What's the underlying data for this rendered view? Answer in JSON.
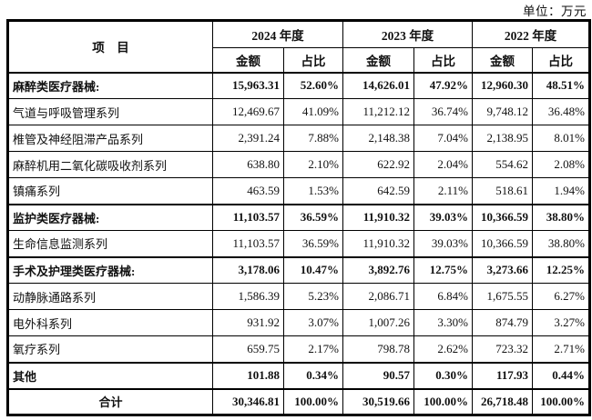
{
  "page": {
    "unit_label": "单位：万元"
  },
  "table": {
    "item_header": "项　目",
    "year_groups": [
      {
        "label": "2024 年度"
      },
      {
        "label": "2023 年度"
      },
      {
        "label": "2022 年度"
      }
    ],
    "sub_headers": [
      "金额",
      "占比",
      "金额",
      "占比",
      "金额",
      "占比"
    ],
    "rows": [
      {
        "label": "麻醉类医疗器械:",
        "bold": true,
        "total": false,
        "values": [
          "15,963.31",
          "52.60%",
          "14,626.01",
          "47.92%",
          "12,960.30",
          "48.51%"
        ]
      },
      {
        "label": "气道与呼吸管理系列",
        "bold": false,
        "total": false,
        "values": [
          "12,469.67",
          "41.09%",
          "11,212.12",
          "36.74%",
          "9,748.12",
          "36.48%"
        ]
      },
      {
        "label": "椎管及神经阻滞产品系列",
        "bold": false,
        "total": false,
        "values": [
          "2,391.24",
          "7.88%",
          "2,148.38",
          "7.04%",
          "2,138.95",
          "8.01%"
        ]
      },
      {
        "label": "麻醉机用二氧化碳吸收剂系列",
        "bold": false,
        "total": false,
        "values": [
          "638.80",
          "2.10%",
          "622.92",
          "2.04%",
          "554.62",
          "2.08%"
        ]
      },
      {
        "label": "镇痛系列",
        "bold": false,
        "total": false,
        "values": [
          "463.59",
          "1.53%",
          "642.59",
          "2.11%",
          "518.61",
          "1.94%"
        ]
      },
      {
        "label": "监护类医疗器械:",
        "bold": true,
        "total": false,
        "values": [
          "11,103.57",
          "36.59%",
          "11,910.32",
          "39.03%",
          "10,366.59",
          "38.80%"
        ]
      },
      {
        "label": "生命信息监测系列",
        "bold": false,
        "total": false,
        "values": [
          "11,103.57",
          "36.59%",
          "11,910.32",
          "39.03%",
          "10,366.59",
          "38.80%"
        ]
      },
      {
        "label": "手术及护理类医疗器械:",
        "bold": true,
        "total": false,
        "values": [
          "3,178.06",
          "10.47%",
          "3,892.76",
          "12.75%",
          "3,273.66",
          "12.25%"
        ]
      },
      {
        "label": "动静脉通路系列",
        "bold": false,
        "total": false,
        "values": [
          "1,586.39",
          "5.23%",
          "2,086.71",
          "6.84%",
          "1,675.55",
          "6.27%"
        ]
      },
      {
        "label": "电外科系列",
        "bold": false,
        "total": false,
        "values": [
          "931.92",
          "3.07%",
          "1,007.26",
          "3.30%",
          "874.79",
          "3.27%"
        ]
      },
      {
        "label": "氧疗系列",
        "bold": false,
        "total": false,
        "values": [
          "659.75",
          "2.17%",
          "798.78",
          "2.62%",
          "723.32",
          "2.71%"
        ]
      },
      {
        "label": "其他",
        "bold": true,
        "total": false,
        "values": [
          "101.88",
          "0.34%",
          "90.57",
          "0.30%",
          "117.93",
          "0.44%"
        ]
      },
      {
        "label": "合计",
        "bold": true,
        "total": true,
        "values": [
          "30,346.81",
          "100.00%",
          "30,519.66",
          "100.00%",
          "26,718.48",
          "100.00%"
        ]
      }
    ]
  },
  "colors": {
    "border": "#000000",
    "text": "#111111",
    "background": "#ffffff"
  }
}
